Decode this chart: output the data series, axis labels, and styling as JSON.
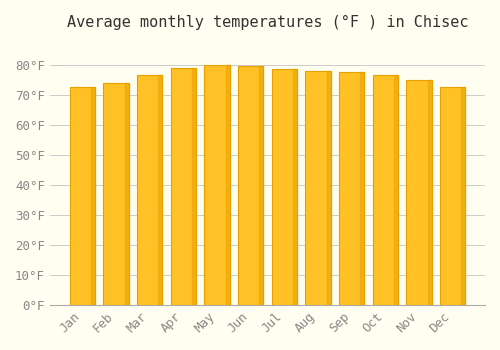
{
  "title": "Average monthly temperatures (°F ) in Chisec",
  "months": [
    "Jan",
    "Feb",
    "Mar",
    "Apr",
    "May",
    "Jun",
    "Jul",
    "Aug",
    "Sep",
    "Oct",
    "Nov",
    "Dec"
  ],
  "values": [
    72.5,
    74.0,
    76.5,
    79.0,
    80.0,
    79.5,
    78.5,
    78.0,
    77.5,
    76.5,
    75.0,
    72.5
  ],
  "bar_color_main": "#FFC125",
  "bar_color_edge": "#E8A000",
  "background_color": "#FFFEF0",
  "grid_color": "#CCCCCC",
  "ylim": [
    0,
    88
  ],
  "yticks": [
    0,
    10,
    20,
    30,
    40,
    50,
    60,
    70,
    80
  ],
  "ytick_labels": [
    "0°F",
    "10°F",
    "20°F",
    "30°F",
    "40°F",
    "50°F",
    "60°F",
    "70°F",
    "80°F"
  ],
  "title_fontsize": 11,
  "tick_fontsize": 9,
  "font_family": "monospace"
}
